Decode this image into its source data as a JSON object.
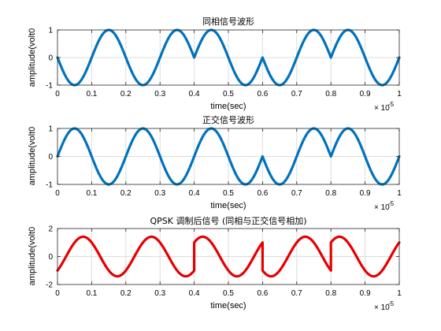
{
  "chart_data": [
    {
      "type": "line",
      "title": "同相信号波形",
      "xlabel": "time(sec)",
      "ylabel": "amplitude(volt0",
      "xlim": [
        0,
        1.0
      ],
      "ylim": [
        -1,
        1
      ],
      "x_multiplier_label": "× 10",
      "x_exponent": "-5",
      "xticks": [
        "0",
        "0.1",
        "0.2",
        "0.3",
        "0.4",
        "0.5",
        "0.6",
        "0.7",
        "0.8",
        "0.9",
        "1"
      ],
      "yticks": [
        "-1",
        "0",
        "1"
      ],
      "grid": true,
      "color": "#0072BD",
      "series": [
        {
          "signal": "sin",
          "cycles_per_unit": 5,
          "segments": [
            {
              "x0": 0.0,
              "x1": 0.4,
              "sign": -1
            },
            {
              "x0": 0.4,
              "x1": 0.6,
              "sign": 1
            },
            {
              "x0": 0.6,
              "x1": 0.8,
              "sign": -1
            },
            {
              "x0": 0.8,
              "x1": 1.0,
              "sign": 1
            }
          ]
        }
      ]
    },
    {
      "type": "line",
      "title": "正交信号波形",
      "xlabel": "time(sec)",
      "ylabel": "amplitude(volt0",
      "xlim": [
        0,
        1.0
      ],
      "ylim": [
        -1,
        1
      ],
      "x_multiplier_label": "× 10",
      "x_exponent": "-5",
      "xticks": [
        "0",
        "0.1",
        "0.2",
        "0.3",
        "0.4",
        "0.5",
        "0.6",
        "0.7",
        "0.8",
        "0.9",
        "1"
      ],
      "yticks": [
        "-1",
        "0",
        "1"
      ],
      "grid": true,
      "color": "#0072BD",
      "series": [
        {
          "signal": "sin",
          "cycles_per_unit": 5,
          "segments": [
            {
              "x0": 0.0,
              "x1": 0.6,
              "sign": 1
            },
            {
              "x0": 0.6,
              "x1": 0.8,
              "sign": -1
            },
            {
              "x0": 0.8,
              "x1": 1.0,
              "sign": 1
            }
          ]
        }
      ]
    },
    {
      "type": "line",
      "title": "QPSK 调制后信号 (同相与正交信号相加)",
      "xlabel": "time(sec)",
      "ylabel": "amplitude(volt0",
      "xlim": [
        0,
        1.0
      ],
      "ylim": [
        -2,
        2
      ],
      "x_multiplier_label": "× 10",
      "x_exponent": "-5",
      "xticks": [
        "0",
        "0.1",
        "0.2",
        "0.3",
        "0.4",
        "0.5",
        "0.6",
        "0.7",
        "0.8",
        "0.9",
        "1"
      ],
      "yticks": [
        "-2",
        "0",
        "2"
      ],
      "grid": true,
      "color": "#E60000",
      "series": [
        {
          "signal": "cos_plus_sin",
          "cycles_per_unit": 5,
          "segments": [
            {
              "x0": 0.0,
              "x1": 0.4,
              "a": -1,
              "b": 1
            },
            {
              "x0": 0.4,
              "x1": 0.6,
              "a": 1,
              "b": 1
            },
            {
              "x0": 0.6,
              "x1": 0.8,
              "a": -1,
              "b": -1
            },
            {
              "x0": 0.8,
              "x1": 1.0,
              "a": 1,
              "b": 1
            }
          ]
        }
      ]
    }
  ]
}
